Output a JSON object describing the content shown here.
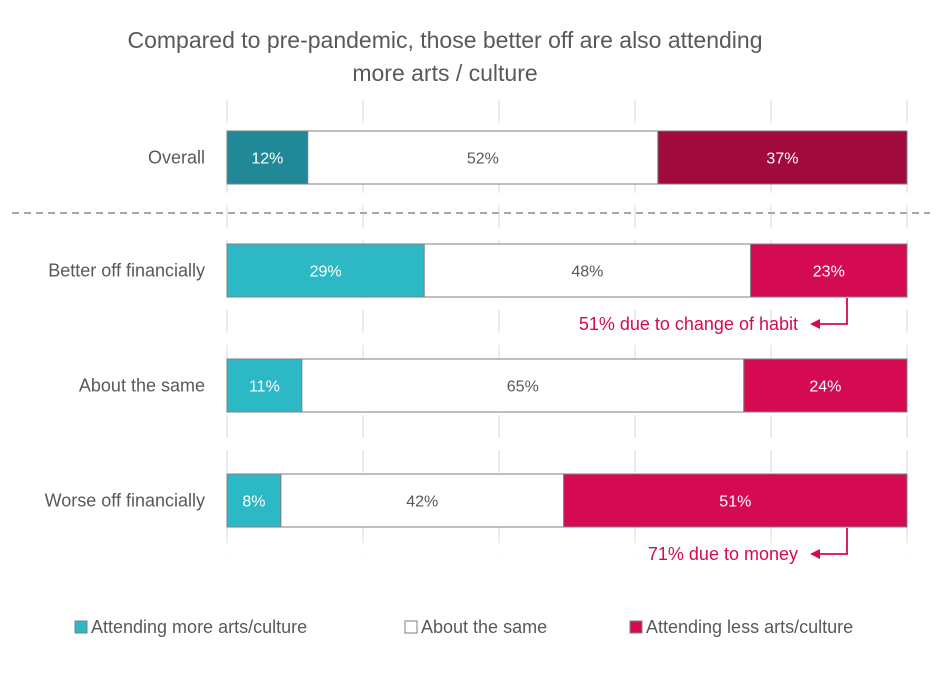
{
  "chart_data": {
    "type": "bar",
    "stacked": true,
    "orientation": "horizontal",
    "normalized_percent": true,
    "title_lines": [
      "Compared to pre-pandemic, those better off are also attending",
      "more arts / culture"
    ],
    "categories": [
      "Overall",
      "Better off financially",
      "About the same",
      "Worse off financially"
    ],
    "series": [
      {
        "name": "Attending more arts/culture",
        "values": [
          12,
          29,
          11,
          8
        ]
      },
      {
        "name": "About the same",
        "values": [
          52,
          48,
          65,
          42
        ]
      },
      {
        "name": "Attending less arts/culture",
        "values": [
          37,
          23,
          24,
          51
        ]
      }
    ],
    "value_labels": [
      [
        "12%",
        "52%",
        "37%"
      ],
      [
        "29%",
        "48%",
        "23%"
      ],
      [
        "11%",
        "65%",
        "24%"
      ],
      [
        "8%",
        "42%",
        "51%"
      ]
    ],
    "annotations": [
      {
        "text": "51% due to change of habit",
        "category": "Better off financially",
        "series": "Attending less arts/culture"
      },
      {
        "text": "71% due to money",
        "category": "Worse off financially",
        "series": "Attending less arts/culture"
      }
    ],
    "xlim": [
      0,
      100
    ],
    "grid": true,
    "legend_position": "bottom",
    "separator_after_first": true
  },
  "colors": {
    "overall_more": "#208896",
    "overall_less": "#a10a3d",
    "more": "#2db8c6",
    "same": "#ffffff",
    "less": "#d40b52",
    "outline": "#7f7f7f",
    "text": "#595959",
    "annotation": "#d40b52",
    "grid": "#d9d9d9",
    "separator": "#a6a6a6"
  }
}
